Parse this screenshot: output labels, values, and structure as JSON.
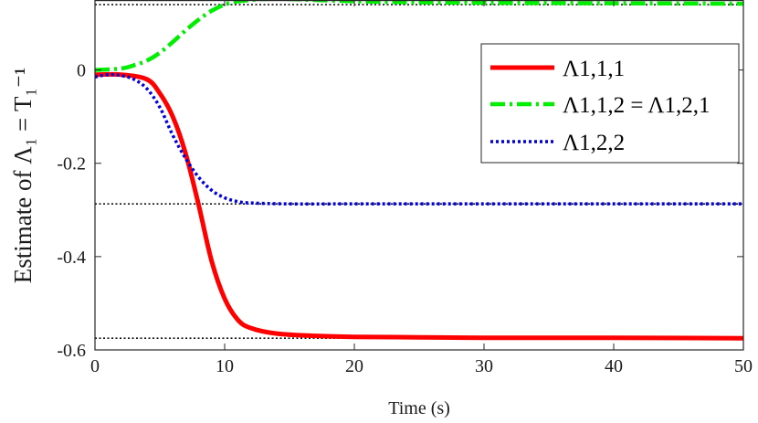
{
  "chart_data": {
    "type": "line",
    "xlabel": "Time (s)",
    "ylabel": "Estimate of Λ₁ = T₁⁻¹",
    "xlim": [
      0,
      50
    ],
    "ylim": [
      -0.6,
      0.15
    ],
    "xticks": [
      0,
      10,
      20,
      30,
      40,
      50
    ],
    "yticks": [
      0,
      -0.2,
      -0.4,
      -0.6
    ],
    "xtick_labels": [
      "0",
      "10",
      "20",
      "30",
      "40",
      "50"
    ],
    "ytick_labels": [
      "0",
      "-0.2",
      "-0.4",
      "-0.6"
    ],
    "grid": false,
    "legend_position": "top-right",
    "reference_lines": [
      0.14,
      -0.287,
      -0.575
    ],
    "series": [
      {
        "name": "Λ1,1,1",
        "color": "#ff0000",
        "style": "solid",
        "x": [
          0,
          2,
          4,
          5,
          6,
          7,
          8,
          9,
          10,
          11,
          12,
          14,
          17,
          20,
          25,
          30,
          40,
          50
        ],
        "values": [
          -0.01,
          -0.01,
          -0.02,
          -0.05,
          -0.1,
          -0.18,
          -0.29,
          -0.41,
          -0.49,
          -0.535,
          -0.553,
          -0.565,
          -0.57,
          -0.572,
          -0.573,
          -0.574,
          -0.574,
          -0.575
        ]
      },
      {
        "name": "Λ1,1,2 = Λ1,2,1",
        "color": "#00ee00",
        "style": "dashdot",
        "x": [
          0,
          2,
          3,
          4,
          5,
          6,
          7,
          8,
          9,
          10,
          11,
          13,
          15,
          18,
          22,
          30,
          40,
          50
        ],
        "values": [
          0,
          0.003,
          0.01,
          0.02,
          0.037,
          0.06,
          0.085,
          0.108,
          0.127,
          0.14,
          0.147,
          0.152,
          0.152,
          0.149,
          0.146,
          0.144,
          0.143,
          0.142
        ]
      },
      {
        "name": "Λ1,2,2",
        "color": "#0000dd",
        "style": "dotted",
        "x": [
          0,
          1,
          2,
          3,
          4,
          5,
          6,
          7,
          8,
          9,
          10,
          11,
          12,
          15,
          20,
          30,
          40,
          50
        ],
        "values": [
          -0.015,
          -0.01,
          -0.012,
          -0.02,
          -0.04,
          -0.08,
          -0.14,
          -0.19,
          -0.23,
          -0.258,
          -0.274,
          -0.282,
          -0.285,
          -0.287,
          -0.287,
          -0.287,
          -0.287,
          -0.287
        ]
      }
    ]
  }
}
